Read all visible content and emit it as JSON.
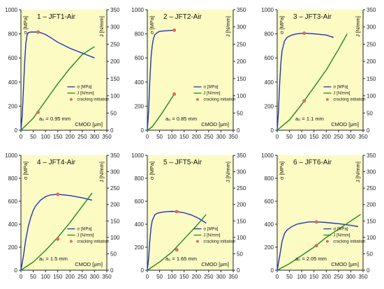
{
  "colors": {
    "background": "#fbfbc3",
    "sigma": "#1f33c4",
    "j": "#1e8a1e",
    "marker": "#e86a6a",
    "axis": "#222222"
  },
  "chart_data": [
    {
      "type": "line",
      "title": "1 – JFT1-Air",
      "ylabel_left": "σ [MPa]",
      "ylabel_right": "J [N/mm]",
      "xlabel": "CMOD [μm]",
      "xlim": [
        0,
        350
      ],
      "ylim_left": [
        0,
        1000
      ],
      "ylim_right": [
        0,
        350
      ],
      "xticks": [
        "0",
        "50",
        "100",
        "150",
        "200",
        "250",
        "300",
        "350"
      ],
      "yticks_left": [
        "0",
        "200",
        "400",
        "600",
        "800",
        "1000"
      ],
      "yticks_right": [
        "0",
        "50",
        "100",
        "150",
        "200",
        "250",
        "300",
        "350"
      ],
      "annotation": "a₀ = 0.95 mm",
      "legend": [
        "σ [MPa]",
        "J [N/mm]",
        "cracking initiation"
      ],
      "series": [
        {
          "name": "σ [MPa]",
          "axis": "left",
          "x": [
            0,
            5,
            10,
            15,
            20,
            25,
            30,
            40,
            50,
            60,
            70,
            80,
            100,
            120,
            150,
            200,
            250,
            300
          ],
          "y": [
            0,
            120,
            330,
            560,
            720,
            790,
            810,
            815,
            815,
            815,
            815,
            810,
            795,
            770,
            730,
            680,
            640,
            600
          ]
        },
        {
          "name": "J [N/mm]",
          "axis": "right",
          "x": [
            0,
            50,
            100,
            150,
            200,
            250,
            300
          ],
          "y": [
            0,
            35,
            85,
            135,
            180,
            220,
            243
          ]
        }
      ],
      "markers": [
        {
          "axis": "left",
          "x": 70,
          "y": 815
        },
        {
          "axis": "right",
          "x": 70,
          "y": 52
        }
      ]
    },
    {
      "type": "line",
      "title": "2 – JFT2-Air",
      "ylabel_left": "σ [MPa]",
      "ylabel_right": "J [N/mm]",
      "xlabel": "CMOD [μm]",
      "xlim": [
        0,
        350
      ],
      "ylim_left": [
        0,
        1000
      ],
      "ylim_right": [
        0,
        350
      ],
      "xticks": [
        "0",
        "50",
        "100",
        "150",
        "200",
        "250",
        "300",
        "350"
      ],
      "yticks_left": [
        "0",
        "200",
        "400",
        "600",
        "800",
        "1000"
      ],
      "yticks_right": [
        "0",
        "50",
        "100",
        "150",
        "200",
        "250",
        "300",
        "350"
      ],
      "annotation": "a₀ = 0.85 mm",
      "legend": [
        "σ [MPa]",
        "J [N/mm]",
        "cracking initiation"
      ],
      "series": [
        {
          "name": "σ [MPa]",
          "axis": "left",
          "x": [
            0,
            5,
            10,
            15,
            20,
            25,
            30,
            40,
            50,
            70,
            90,
            110
          ],
          "y": [
            0,
            150,
            400,
            600,
            700,
            760,
            790,
            810,
            820,
            825,
            828,
            830
          ]
        },
        {
          "name": "J [N/mm]",
          "axis": "right",
          "x": [
            0,
            20,
            40,
            60,
            80,
            100,
            110
          ],
          "y": [
            0,
            10,
            30,
            50,
            72,
            94,
            105
          ]
        }
      ],
      "markers": [
        {
          "axis": "left",
          "x": 110,
          "y": 830
        },
        {
          "axis": "right",
          "x": 110,
          "y": 105
        }
      ]
    },
    {
      "type": "line",
      "title": "3 – JFT3-Air",
      "ylabel_left": "σ [MPa]",
      "ylabel_right": "J [N/mm]",
      "xlabel": "CMOD [μm]",
      "xlim": [
        0,
        350
      ],
      "ylim_left": [
        0,
        1000
      ],
      "ylim_right": [
        0,
        350
      ],
      "xticks": [
        "0",
        "50",
        "100",
        "150",
        "200",
        "250",
        "300",
        "350"
      ],
      "yticks_left": [
        "0",
        "200",
        "400",
        "600",
        "800",
        "1000"
      ],
      "yticks_right": [
        "0",
        "50",
        "100",
        "150",
        "200",
        "250",
        "300",
        "350"
      ],
      "annotation": "a₀ = 1.1 mm",
      "legend": [
        "σ [MPa]",
        "J [N/mm]",
        "cracking initiation"
      ],
      "series": [
        {
          "name": "σ [MPa]",
          "axis": "left",
          "x": [
            0,
            5,
            10,
            15,
            20,
            30,
            40,
            60,
            80,
            110,
            150,
            200,
            230
          ],
          "y": [
            0,
            150,
            380,
            560,
            660,
            740,
            770,
            790,
            800,
            805,
            800,
            790,
            770
          ]
        },
        {
          "name": "J [N/mm]",
          "axis": "right",
          "x": [
            0,
            50,
            100,
            150,
            200,
            250,
            285
          ],
          "y": [
            0,
            30,
            75,
            125,
            175,
            235,
            280
          ]
        }
      ],
      "markers": [
        {
          "axis": "left",
          "x": 110,
          "y": 805
        },
        {
          "axis": "right",
          "x": 110,
          "y": 85
        }
      ]
    },
    {
      "type": "line",
      "title": "4 – JFT4-Air",
      "ylabel_left": "σ [MPa]",
      "ylabel_right": "J [N/mm]",
      "xlabel": "CMOD [μm]",
      "xlim": [
        0,
        350
      ],
      "ylim_left": [
        0,
        1000
      ],
      "ylim_right": [
        0,
        350
      ],
      "xticks": [
        "0",
        "50",
        "100",
        "150",
        "200",
        "250",
        "300",
        "350"
      ],
      "yticks_left": [
        "0",
        "200",
        "400",
        "600",
        "800",
        "1000"
      ],
      "yticks_right": [
        "0",
        "50",
        "100",
        "150",
        "200",
        "250",
        "300",
        "350"
      ],
      "annotation": "a₀ = 1.5 mm",
      "legend": [
        "σ [MPa]",
        "J [N/mm]",
        "cracking initiation"
      ],
      "series": [
        {
          "name": "σ [MPa]",
          "axis": "left",
          "x": [
            0,
            10,
            20,
            30,
            40,
            50,
            60,
            80,
            100,
            120,
            150,
            200,
            250,
            290
          ],
          "y": [
            0,
            120,
            270,
            380,
            460,
            520,
            560,
            610,
            640,
            655,
            660,
            650,
            630,
            610
          ]
        },
        {
          "name": "J [N/mm]",
          "axis": "right",
          "x": [
            0,
            50,
            100,
            150,
            200,
            250,
            290
          ],
          "y": [
            0,
            25,
            60,
            100,
            145,
            195,
            235
          ]
        }
      ],
      "markers": [
        {
          "axis": "left",
          "x": 150,
          "y": 660
        },
        {
          "axis": "right",
          "x": 150,
          "y": 95
        }
      ]
    },
    {
      "type": "line",
      "title": "5 – JFT5-Air",
      "ylabel_left": "σ [MPa]",
      "ylabel_right": "J [N/mm]",
      "xlabel": "CMOD [μm]",
      "xlim": [
        0,
        350
      ],
      "ylim_left": [
        0,
        1000
      ],
      "ylim_right": [
        0,
        350
      ],
      "xticks": [
        "0",
        "50",
        "100",
        "150",
        "200",
        "250",
        "300",
        "350"
      ],
      "yticks_left": [
        "0",
        "200",
        "400",
        "600",
        "800",
        "1000"
      ],
      "yticks_right": [
        "0",
        "50",
        "100",
        "150",
        "200",
        "250",
        "300",
        "350"
      ],
      "annotation": "a₀ = 1.65 mm",
      "legend": [
        "σ [MPa]",
        "J [N/mm]",
        "cracking initiation"
      ],
      "series": [
        {
          "name": "σ [MPa]",
          "axis": "left",
          "x": [
            0,
            5,
            10,
            15,
            20,
            30,
            40,
            60,
            80,
            100,
            120,
            150,
            180,
            210,
            240
          ],
          "y": [
            0,
            100,
            250,
            370,
            430,
            480,
            495,
            505,
            510,
            512,
            510,
            500,
            480,
            450,
            410
          ]
        },
        {
          "name": "J [N/mm]",
          "axis": "right",
          "x": [
            0,
            50,
            100,
            150,
            200,
            240
          ],
          "y": [
            0,
            25,
            55,
            95,
            135,
            170
          ]
        }
      ],
      "markers": [
        {
          "axis": "left",
          "x": 120,
          "y": 510
        },
        {
          "axis": "right",
          "x": 120,
          "y": 62
        }
      ]
    },
    {
      "type": "line",
      "title": "6 – JFT6-Air",
      "ylabel_left": "σ [MPa]",
      "ylabel_right": "J [N/mm]",
      "xlabel": "CMOD [μm]",
      "xlim": [
        0,
        350
      ],
      "ylim_left": [
        0,
        1000
      ],
      "ylim_right": [
        0,
        350
      ],
      "xticks": [
        "0",
        "50",
        "100",
        "150",
        "200",
        "250",
        "300",
        "350"
      ],
      "yticks_left": [
        "0",
        "200",
        "400",
        "600",
        "800",
        "1000"
      ],
      "yticks_right": [
        "0",
        "50",
        "100",
        "150",
        "200",
        "250",
        "300",
        "350"
      ],
      "annotation": "a₀ = 2.05 mm",
      "legend": [
        "σ [MPa]",
        "J [N/mm]",
        "cracking initiation"
      ],
      "series": [
        {
          "name": "σ [MPa]",
          "axis": "left",
          "x": [
            0,
            10,
            20,
            30,
            40,
            60,
            80,
            100,
            130,
            160,
            200,
            250,
            300,
            330
          ],
          "y": [
            0,
            120,
            250,
            320,
            350,
            380,
            400,
            410,
            420,
            420,
            415,
            405,
            390,
            380
          ]
        },
        {
          "name": "J [N/mm]",
          "axis": "right",
          "x": [
            0,
            50,
            100,
            150,
            200,
            250,
            300,
            340
          ],
          "y": [
            0,
            20,
            45,
            70,
            100,
            125,
            150,
            170
          ]
        }
      ],
      "markers": [
        {
          "axis": "left",
          "x": 160,
          "y": 420
        },
        {
          "axis": "right",
          "x": 160,
          "y": 75
        }
      ]
    }
  ]
}
